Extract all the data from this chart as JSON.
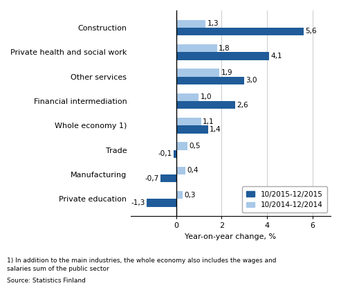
{
  "categories": [
    "Construction",
    "Private health and social work",
    "Other services",
    "Financial intermediation",
    "Whole economy 1)",
    "Trade",
    "Manufacturing",
    "Private education"
  ],
  "values_2015": [
    5.6,
    4.1,
    3.0,
    2.6,
    1.4,
    -0.1,
    -0.7,
    -1.3
  ],
  "values_2014": [
    1.3,
    1.8,
    1.9,
    1.0,
    1.1,
    0.5,
    0.4,
    0.3
  ],
  "color_2015": "#1F5C99",
  "color_2014": "#A8C8E8",
  "xlabel": "Year-on-year change, %",
  "legend_2015": "10/2015-12/2015",
  "legend_2014": "10/2014-12/2014",
  "xlim": [
    -2.0,
    6.8
  ],
  "xticks": [
    0,
    2,
    4,
    6
  ],
  "xtick_labels": [
    "0",
    "2",
    "4",
    "6"
  ],
  "footnote1": "1) In addition to the main industries, the whole economy also includes the wages and",
  "footnote2": "salaries sum of the public sector",
  "source": "Source: Statistics Finland",
  "bar_height": 0.32,
  "fontsize_labels": 8.0,
  "fontsize_values": 7.5,
  "fontsize_axis": 8.0
}
